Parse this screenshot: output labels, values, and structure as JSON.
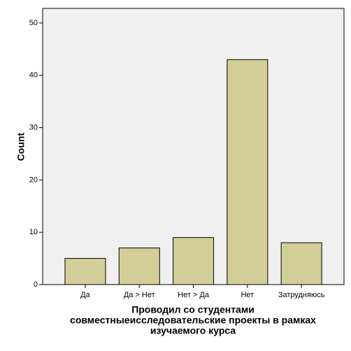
{
  "chart_data": {
    "type": "bar",
    "x_label": [
      "Проводил со студентами",
      "совместныеисследовательские проекты в рамках",
      "изучаемого курса"
    ],
    "y_label": "Count",
    "categories": [
      "Да",
      "Да > Нет",
      "Нет > Да",
      "Нет",
      "Затрудняюсь"
    ],
    "values": [
      5,
      7,
      9,
      43,
      8
    ],
    "color": "#d3ce97",
    "ylim": [
      0,
      52.8
    ],
    "yticks": [
      0,
      10,
      20,
      30,
      40,
      50
    ]
  }
}
